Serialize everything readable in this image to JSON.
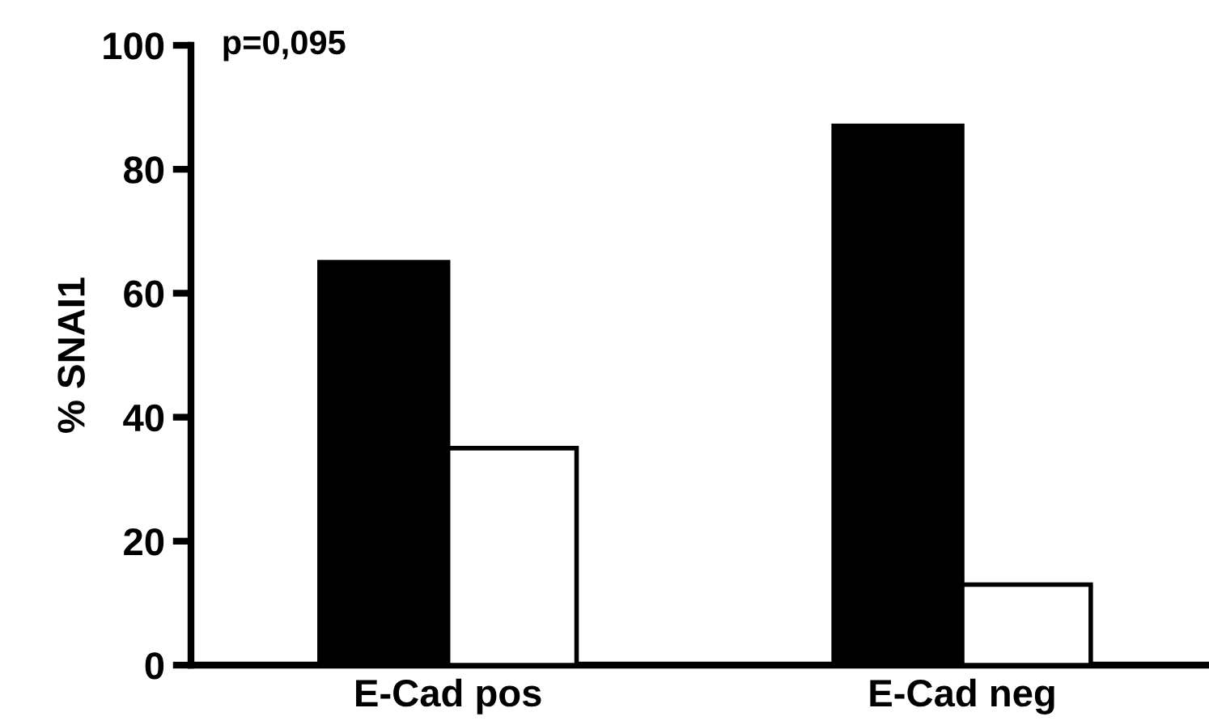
{
  "chart_data": {
    "type": "bar",
    "ylabel": "% SNAI1",
    "categories": [
      "E-Cad pos",
      "E-Cad neg"
    ],
    "series": [
      {
        "color": "#000000",
        "values": [
          65,
          87
        ]
      },
      {
        "color": "#ffffff",
        "values": [
          35,
          13
        ]
      }
    ],
    "ylim": [
      0,
      100
    ],
    "yticks": [
      0,
      20,
      40,
      60,
      80,
      100
    ],
    "annotations": [
      "p=0,095"
    ]
  }
}
